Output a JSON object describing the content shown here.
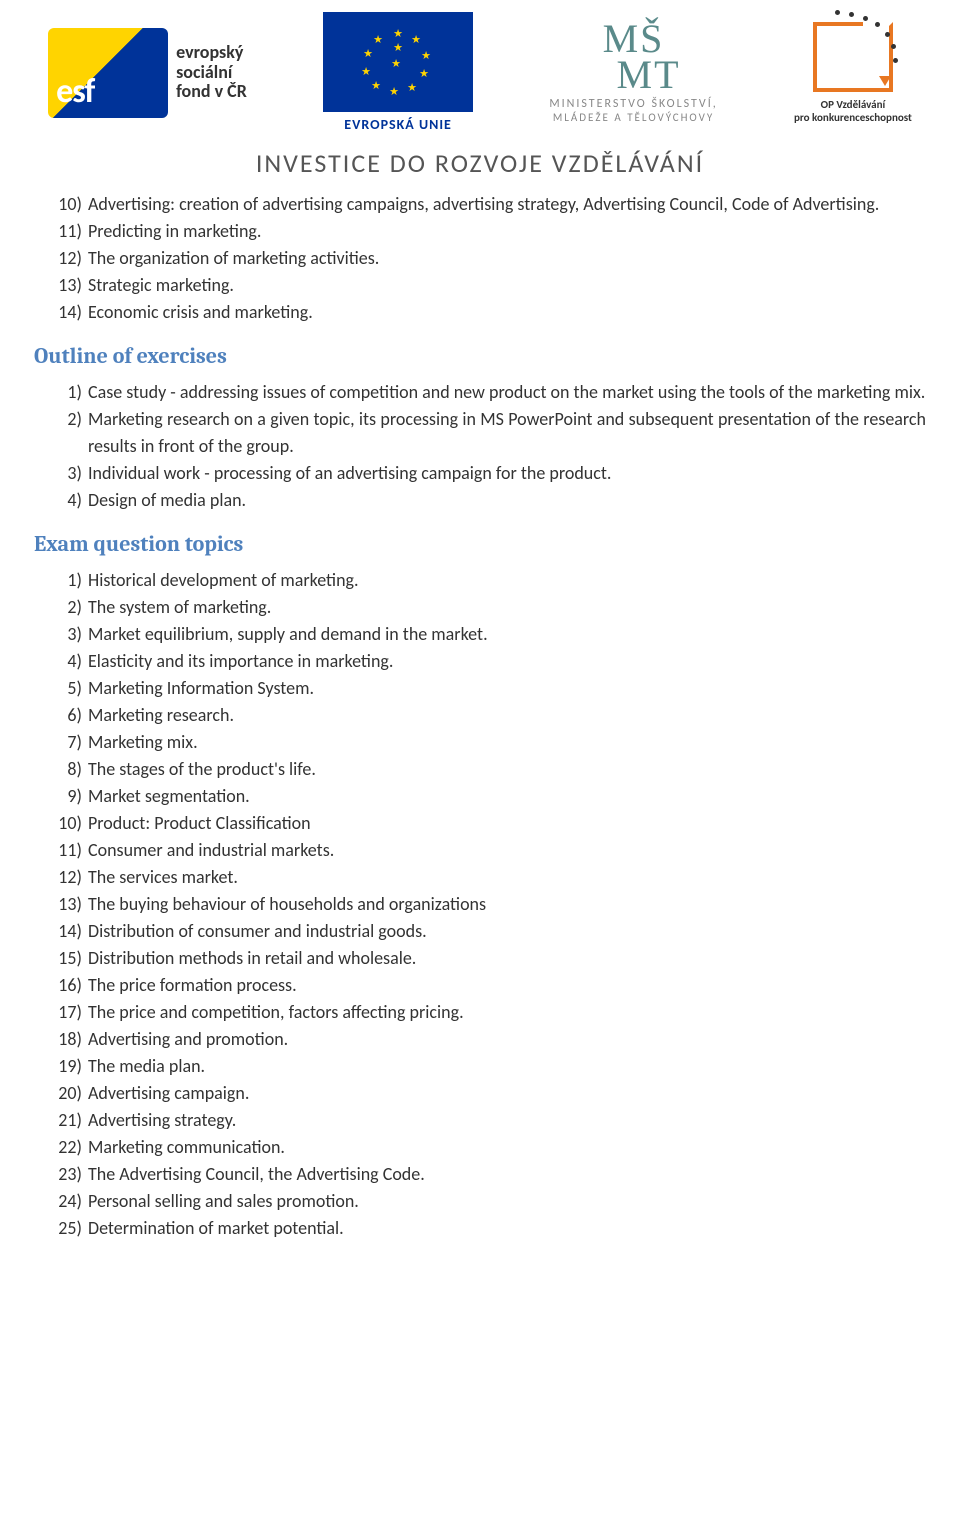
{
  "colors": {
    "heading": "#4f81bd",
    "text": "#333333",
    "banner": "#555555",
    "eu_blue": "#003399",
    "eu_yellow": "#ffd400",
    "orange": "#e87722",
    "teal": "#5a8a8a",
    "grey": "#888888"
  },
  "typography": {
    "body_family": "Calibri, Arial, sans-serif",
    "body_size_pt": 13,
    "heading_family": "Cambria, Georgia, serif",
    "heading_size_pt": 16,
    "banner_size_pt": 19
  },
  "header": {
    "esf": {
      "lines": [
        "evropský",
        "sociální",
        "fond v ČR"
      ]
    },
    "eu": {
      "label": "EVROPSKÁ UNIE"
    },
    "msmt": {
      "top1": "MŠ",
      "top2": "MT",
      "line1": "MINISTERSTVO ŠKOLSTVÍ,",
      "line2": "MLÁDEŽE A TĚLOVÝCHOVY"
    },
    "opvk": {
      "line1": "OP Vzdělávání",
      "line2": "pro konkurenceschopnost"
    },
    "banner": "INVESTICE DO ROZVOJE VZDĚLÁVÁNÍ"
  },
  "top_list": [
    {
      "n": "10)",
      "text": "Advertising: creation of advertising campaigns, advertising strategy, Advertising Council, Code of Advertising.",
      "indent_cont": true
    },
    {
      "n": "11)",
      "text": "Predicting in marketing."
    },
    {
      "n": "12)",
      "text": " The organization of marketing activities."
    },
    {
      "n": "13)",
      "text": "Strategic marketing."
    },
    {
      "n": "14)",
      "text": "Economic crisis and marketing."
    }
  ],
  "sections": [
    {
      "heading": "Outline of exercises",
      "items": [
        {
          "n": "1)",
          "text": "Case study - addressing issues of competition and new product on the market using the tools of the marketing mix."
        },
        {
          "n": "2)",
          "text": "Marketing research on a given topic, its processing in MS PowerPoint and subsequent presentation of the research results in front of the group."
        },
        {
          "n": "3)",
          "text": "Individual work - processing of an advertising campaign for the product."
        },
        {
          "n": "4)",
          "text": "Design of media plan."
        }
      ]
    },
    {
      "heading": "Exam question topics",
      "items": [
        {
          "n": "1)",
          "text": "Historical development of marketing."
        },
        {
          "n": "2)",
          "text": "The system of marketing."
        },
        {
          "n": "3)",
          "text": "Market equilibrium, supply and demand in the market."
        },
        {
          "n": "4)",
          "text": "Elasticity and its importance in marketing."
        },
        {
          "n": "5)",
          "text": "Marketing Information System."
        },
        {
          "n": "6)",
          "text": "Marketing research."
        },
        {
          "n": "7)",
          "text": "Marketing mix."
        },
        {
          "n": "8)",
          "text": "The stages of the product's life."
        },
        {
          "n": "9)",
          "text": "Market segmentation."
        },
        {
          "n": "10)",
          "text": "Product: Product Classification"
        },
        {
          "n": "11)",
          "text": "Consumer and industrial markets."
        },
        {
          "n": "12)",
          "text": "The services market."
        },
        {
          "n": "13)",
          "text": "The buying behaviour of households and organizations"
        },
        {
          "n": "14)",
          "text": "Distribution of consumer and industrial goods."
        },
        {
          "n": "15)",
          "text": "Distribution methods in retail and wholesale."
        },
        {
          "n": "16)",
          "text": "The price formation process."
        },
        {
          "n": "17)",
          "text": "The price and competition, factors affecting pricing."
        },
        {
          "n": "18)",
          "text": "Advertising and promotion."
        },
        {
          "n": "19)",
          "text": "The media plan."
        },
        {
          "n": "20)",
          "text": "Advertising campaign."
        },
        {
          "n": "21)",
          "text": "Advertising strategy."
        },
        {
          "n": "22)",
          "text": "Marketing communication."
        },
        {
          "n": "23)",
          "text": "The Advertising Council, the Advertising Code."
        },
        {
          "n": "24)",
          "text": "Personal selling and sales promotion."
        },
        {
          "n": "25)",
          "text": "Determination of market potential."
        }
      ]
    }
  ]
}
